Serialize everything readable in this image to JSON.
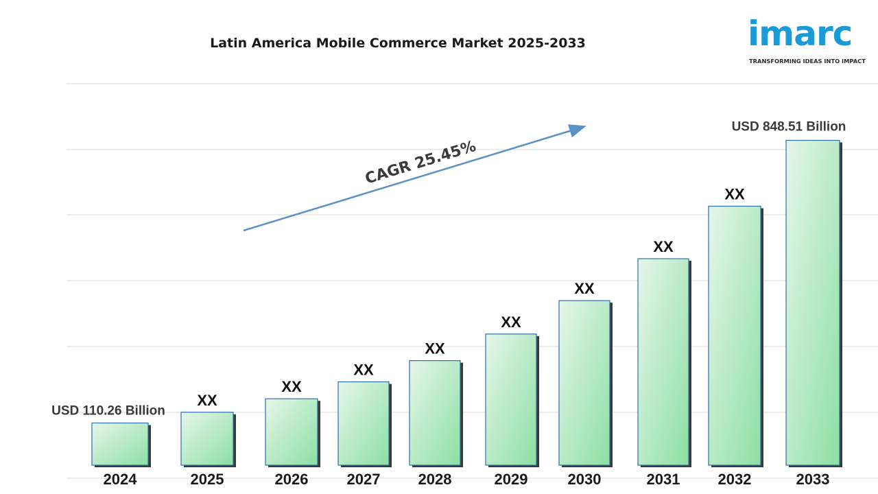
{
  "chart_data": {
    "type": "bar",
    "title": "Latin America Mobile Commerce Market 2025-2033",
    "categories": [
      "2024",
      "2025",
      "2026",
      "2027",
      "2028",
      "2029",
      "2030",
      "2031",
      "2032",
      "2033"
    ],
    "values": [
      110.26,
      138.3,
      173.5,
      217.7,
      273.1,
      342.6,
      429.8,
      539.3,
      676.5,
      848.51
    ],
    "data_labels": [
      "USD 110.26 Billion",
      "XX",
      "XX",
      "XX",
      "XX",
      "XX",
      "XX",
      "XX",
      "XX",
      "USD  848.51 Billion"
    ],
    "annotation": "CAGR  25.45%",
    "ylim": [
      0,
      1000
    ],
    "grid": true,
    "legend": "none",
    "bar_color": "#a8e6b8"
  },
  "logo": {
    "name": "imarc",
    "tagline": "TRANSFORMING IDEAS INTO IMPACT",
    "color": "#1a9ad6"
  }
}
